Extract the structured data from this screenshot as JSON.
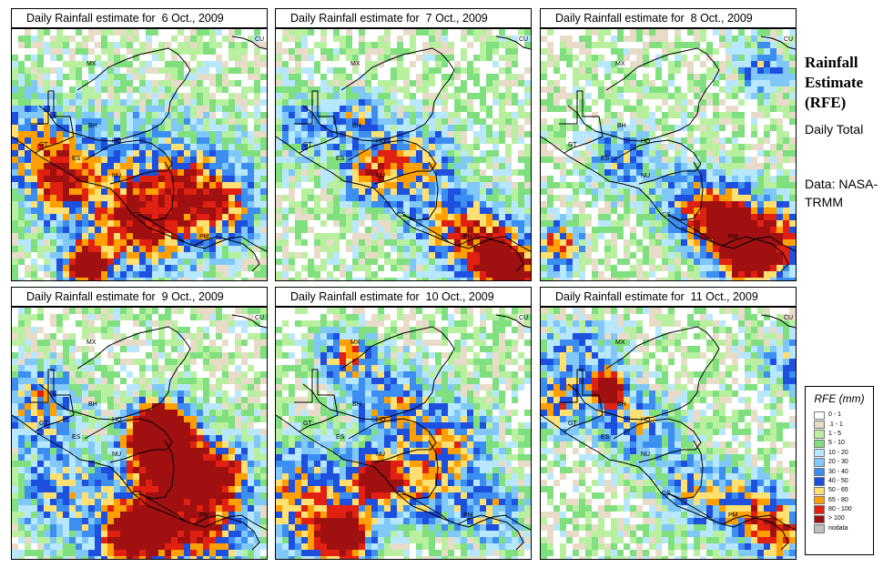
{
  "panels": [
    {
      "title": "Daily Rainfall estimate for  6 Oct., 2009",
      "seed": 11,
      "centers": [
        [
          95,
          291,
          17,
          5
        ],
        [
          65,
          195,
          28,
          3
        ],
        [
          155,
          250,
          32,
          2.5
        ],
        [
          200,
          205,
          45,
          2
        ],
        [
          240,
          225,
          30,
          2.5
        ],
        [
          30,
          150,
          30,
          2
        ],
        [
          120,
          210,
          60,
          1.5
        ]
      ]
    },
    {
      "title": "Daily Rainfall estimate for  7 Oct., 2009",
      "seed": 23,
      "centers": [
        [
          560,
          297,
          22,
          5
        ],
        [
          530,
          265,
          30,
          2.5
        ],
        [
          410,
          190,
          25,
          3
        ],
        [
          490,
          250,
          35,
          2
        ],
        [
          460,
          170,
          30,
          2
        ],
        [
          330,
          140,
          30,
          1.5
        ],
        [
          390,
          125,
          20,
          2
        ]
      ]
    },
    {
      "title": "Daily Rainfall estimate for  8 Oct., 2009",
      "seed": 37,
      "centers": [
        [
          820,
          283,
          20,
          4
        ],
        [
          850,
          262,
          30,
          3.5
        ],
        [
          795,
          245,
          28,
          3.5
        ],
        [
          612,
          270,
          18,
          3.5
        ],
        [
          760,
          225,
          30,
          2
        ],
        [
          680,
          175,
          25,
          2
        ],
        [
          835,
          75,
          20,
          2
        ]
      ]
    },
    {
      "title": "Daily Rainfall estimate for  9 Oct., 2009",
      "seed": 41,
      "centers": [
        [
          175,
          472,
          22,
          6
        ],
        [
          178,
          500,
          26,
          5
        ],
        [
          235,
          525,
          28,
          4.5
        ],
        [
          170,
          570,
          30,
          4
        ],
        [
          140,
          595,
          26,
          3.5
        ],
        [
          40,
          440,
          30,
          2.5
        ],
        [
          70,
          540,
          40,
          2
        ],
        [
          230,
          590,
          30,
          2.5
        ]
      ]
    },
    {
      "title": "Daily Rainfall estimate for  10 Oct., 2009",
      "seed": 53,
      "centers": [
        [
          412,
          525,
          16,
          5
        ],
        [
          375,
          590,
          22,
          5
        ],
        [
          330,
          545,
          40,
          3
        ],
        [
          460,
          530,
          35,
          2.5
        ],
        [
          430,
          440,
          30,
          2.5
        ],
        [
          380,
          390,
          20,
          3
        ],
        [
          500,
          480,
          30,
          2
        ],
        [
          540,
          560,
          25,
          2
        ]
      ]
    },
    {
      "title": "Daily Rainfall estimate for  11 Oct., 2009",
      "seed": 67,
      "centers": [
        [
          668,
          427,
          12,
          5.5
        ],
        [
          855,
          585,
          22,
          3.5
        ],
        [
          820,
          555,
          25,
          2.5
        ],
        [
          630,
          400,
          35,
          2
        ],
        [
          700,
          470,
          30,
          2
        ],
        [
          760,
          540,
          30,
          2
        ],
        [
          860,
          400,
          20,
          2
        ],
        [
          605,
          450,
          20,
          2
        ]
      ]
    }
  ],
  "labels": [
    "MX",
    "BH",
    "GT",
    "HO",
    "ES",
    "NU",
    "CS",
    "PM",
    "CU"
  ],
  "side": {
    "title": "Rainfall Estimate (RFE)",
    "daily": "Daily Total",
    "data": "Data: NASA- TRMM"
  },
  "legend": {
    "title": "RFE (mm)",
    "items": [
      {
        "label": "0 - 1",
        "color": "#ffffff"
      },
      {
        "label": ".1 - 1",
        "color": "#e8dcc8"
      },
      {
        "label": "1 - 5",
        "color": "#b8f0a0"
      },
      {
        "label": "5 - 10",
        "color": "#80e080"
      },
      {
        "label": "10 - 20",
        "color": "#b8e8ff"
      },
      {
        "label": "20 - 30",
        "color": "#80c8f8"
      },
      {
        "label": "30 - 40",
        "color": "#3c8ff0"
      },
      {
        "label": "40 - 50",
        "color": "#1e50e0"
      },
      {
        "label": "50 - 65",
        "color": "#ffe070"
      },
      {
        "label": "65 - 80",
        "color": "#ffa000"
      },
      {
        "label": "80 - 100",
        "color": "#e02010"
      },
      {
        "label": "> 100",
        "color": "#a01010"
      },
      {
        "label": "nodata",
        "color": "#c0c0c0"
      }
    ]
  }
}
